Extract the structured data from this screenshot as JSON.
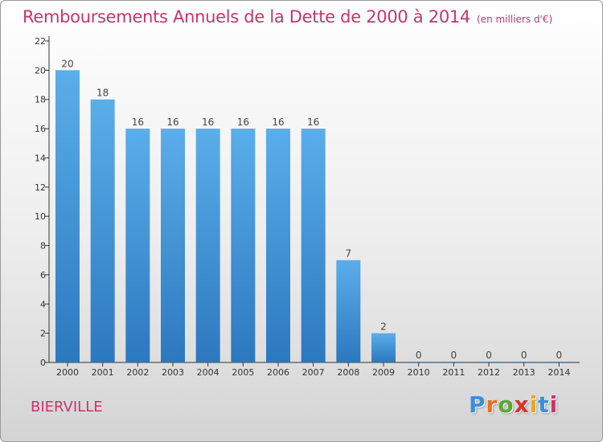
{
  "header": {
    "title": "Remboursements Annuels de la Dette de 2000 à 2014",
    "subtitle": "(en milliers d'€)"
  },
  "footer": {
    "commune": "BIERVILLE",
    "logo_text": "Proxiti"
  },
  "colors": {
    "title": "#c8356b",
    "bar_light": "#5aaeea",
    "bar_dark": "#2c78bf",
    "axis": "#333333"
  },
  "chart_data": {
    "type": "bar",
    "categories": [
      "2000",
      "2001",
      "2002",
      "2003",
      "2004",
      "2005",
      "2006",
      "2007",
      "2008",
      "2009",
      "2010",
      "2011",
      "2012",
      "2013",
      "2014"
    ],
    "values": [
      20,
      18,
      16,
      16,
      16,
      16,
      16,
      16,
      7,
      2,
      0,
      0,
      0,
      0,
      0
    ],
    "title": "Remboursements Annuels de la Dette de 2000 à 2014",
    "subtitle": "(en milliers d'€)",
    "xlabel": "",
    "ylabel": "",
    "ylim": [
      0,
      22
    ],
    "yticks": [
      0,
      2,
      4,
      6,
      8,
      10,
      12,
      14,
      16,
      18,
      20,
      22
    ],
    "grid": false,
    "legend": "none"
  }
}
